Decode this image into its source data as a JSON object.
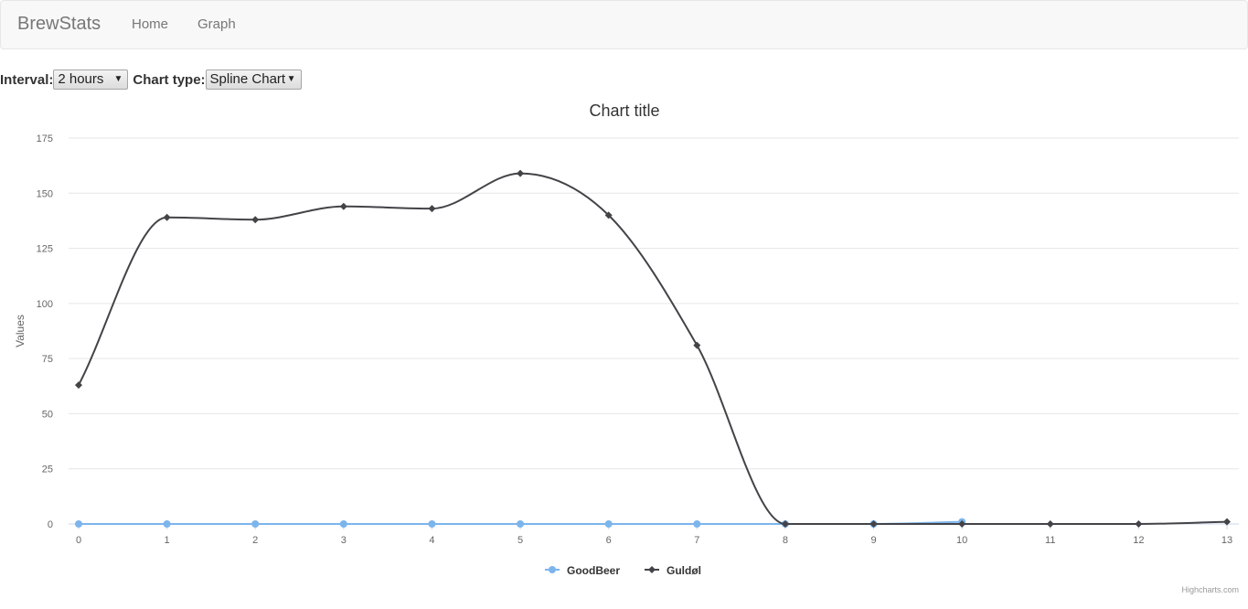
{
  "navbar": {
    "brand": "BrewStats",
    "links": [
      {
        "label": "Home"
      },
      {
        "label": "Graph"
      }
    ]
  },
  "controls": {
    "interval_label": "Interval:",
    "interval_value": "2 hours",
    "chart_type_label": "Chart type:",
    "chart_type_value": "Spline Chart"
  },
  "credits": "Highcharts.com",
  "colors": {
    "goodbeer": "#7cb5ec",
    "guldol": "#434348",
    "grid": "#e6e6e6"
  },
  "chart_data": {
    "type": "line",
    "smooth": true,
    "title": "Chart title",
    "xlabel": "",
    "ylabel": "Values",
    "x": [
      0,
      1,
      2,
      3,
      4,
      5,
      6,
      7,
      8,
      9,
      10,
      11,
      12,
      13
    ],
    "ylim": [
      0,
      175
    ],
    "yticks": [
      0,
      25,
      50,
      75,
      100,
      125,
      150,
      175
    ],
    "grid": true,
    "legend_position": "bottom-center",
    "series": [
      {
        "name": "GoodBeer",
        "marker": "circle",
        "color": "#7cb5ec",
        "values": [
          0,
          0,
          0,
          0,
          0,
          0,
          0,
          0,
          0,
          0,
          1,
          null,
          null,
          null
        ]
      },
      {
        "name": "Guldøl",
        "marker": "diamond",
        "color": "#434348",
        "values": [
          63,
          139,
          138,
          144,
          143,
          159,
          140,
          81,
          0,
          0,
          0,
          0,
          0,
          1
        ]
      }
    ]
  }
}
